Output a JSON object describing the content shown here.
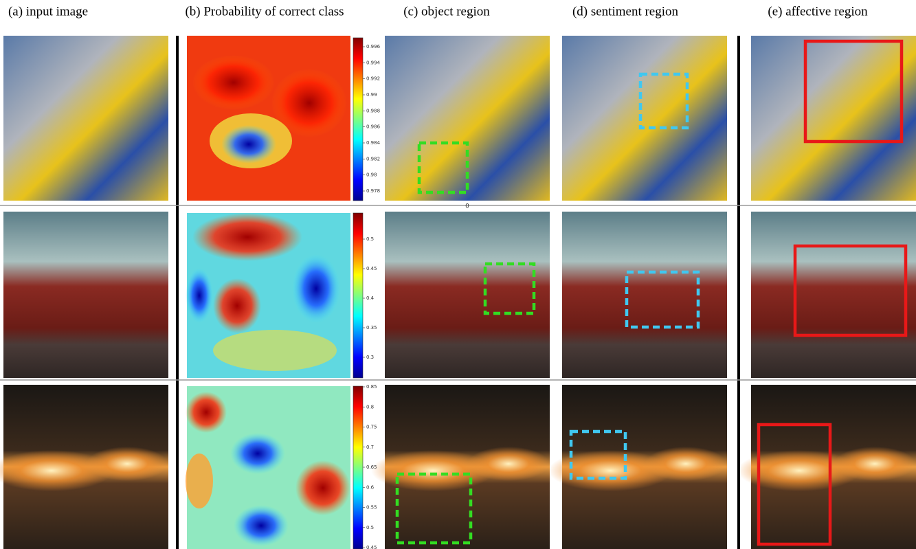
{
  "columns": [
    "(a) input image",
    "(b) Probability of correct class",
    "(c) object region",
    "(d) sentiment region",
    "(e) affective region"
  ],
  "divider_label": "0",
  "colorbars": [
    {
      "ticks": [
        "0.996",
        "0.994",
        "0.992",
        "0.99",
        "0.988",
        "0.986",
        "0.984",
        "0.982",
        "0.98",
        "0.978"
      ]
    },
    {
      "ticks": [
        "0.5",
        "0.45",
        "0.4",
        "0.35",
        "0.3"
      ]
    },
    {
      "ticks": [
        "0.85",
        "0.8",
        "0.75",
        "0.7",
        "0.65",
        "0.6",
        "0.55",
        "0.5",
        "0.45"
      ]
    }
  ]
}
